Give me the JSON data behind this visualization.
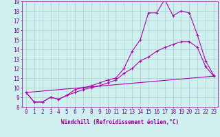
{
  "xlabel": "Windchill (Refroidissement éolien,°C)",
  "background_color": "#cff0ee",
  "grid_color": "#aacfcf",
  "line_color1": "#aa00aa",
  "line_color2": "#aa00aa",
  "line_color3": "#aa00aa",
  "x_min": -0.5,
  "x_max": 23.5,
  "y_min": 8,
  "y_max": 19,
  "series1_y": [
    9.5,
    8.5,
    8.5,
    9.0,
    8.8,
    9.2,
    9.8,
    10.0,
    10.2,
    10.5,
    10.8,
    11.0,
    12.0,
    13.8,
    15.0,
    17.8,
    17.8,
    19.2,
    17.5,
    18.0,
    17.8,
    15.5,
    12.8,
    11.3
  ],
  "series2_y": [
    9.5,
    8.5,
    8.5,
    9.0,
    8.8,
    9.2,
    9.5,
    9.8,
    10.0,
    10.2,
    10.5,
    10.8,
    11.5,
    12.0,
    12.8,
    13.2,
    13.8,
    14.2,
    14.5,
    14.8,
    14.8,
    14.2,
    12.2,
    11.2
  ],
  "series3_x": [
    0,
    23
  ],
  "series3_y": [
    9.5,
    11.2
  ],
  "xticks": [
    0,
    1,
    2,
    3,
    4,
    5,
    6,
    7,
    8,
    9,
    10,
    11,
    12,
    13,
    14,
    15,
    16,
    17,
    18,
    19,
    20,
    21,
    22,
    23
  ],
  "yticks": [
    8,
    9,
    10,
    11,
    12,
    13,
    14,
    15,
    16,
    17,
    18,
    19
  ],
  "xlabel_fontsize": 5.5,
  "tick_fontsize": 5.5
}
